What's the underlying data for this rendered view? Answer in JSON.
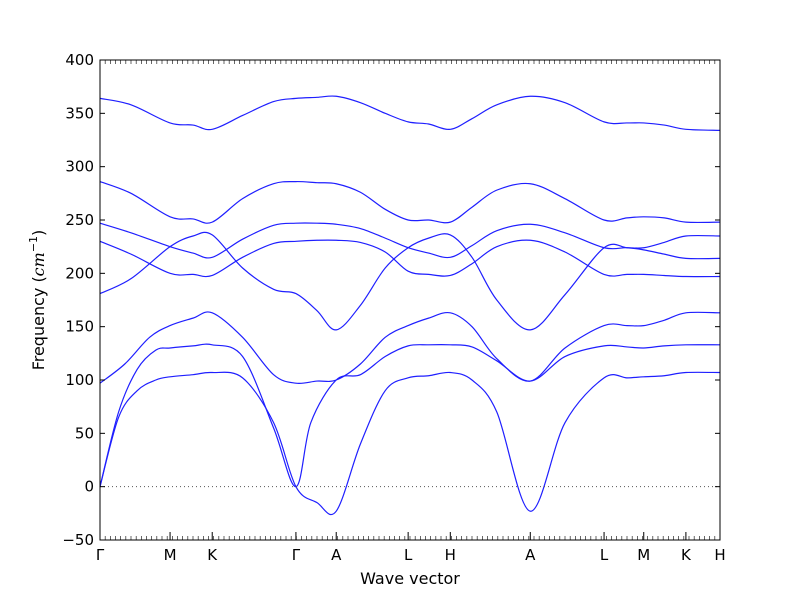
{
  "chart_data": {
    "type": "line",
    "title": "",
    "xlabel": "Wave vector",
    "ylabel_main": "Frequency (",
    "ylabel_unit": "cm",
    "ylabel_exp": "−1",
    "ylabel_close": ")",
    "ylim": [
      -50,
      400
    ],
    "yticks": [
      -50,
      0,
      50,
      100,
      150,
      200,
      250,
      300,
      350,
      400
    ],
    "ytick_labels": [
      "−50",
      "0",
      "50",
      "100",
      "150",
      "200",
      "250",
      "300",
      "350",
      "400"
    ],
    "xlim": [
      0,
      10
    ],
    "high_symmetry_points": [
      {
        "label": "Γ",
        "x": 0
      },
      {
        "label": "M",
        "x": 1.13
      },
      {
        "label": "K",
        "x": 1.81
      },
      {
        "label": "Γ",
        "x": 3.16
      },
      {
        "label": "A",
        "x": 3.81
      },
      {
        "label": "L",
        "x": 4.97
      },
      {
        "label": "H",
        "x": 5.65
      },
      {
        "label": "A",
        "x": 6.94
      },
      {
        "label": "L",
        "x": 8.13
      },
      {
        "label": "M",
        "x": 8.77
      },
      {
        "label": "K",
        "x": 9.45
      },
      {
        "label": "H",
        "x": 10.0
      }
    ],
    "zero_line": true,
    "line_color": "#1f1fff",
    "series": [
      {
        "x": [
          0,
          0.3,
          0.6,
          0.9,
          1.13,
          1.5,
          1.81,
          2.3,
          2.8,
          3.16,
          3.5,
          3.81,
          4.2,
          4.6,
          4.97,
          5.3,
          5.65,
          6.0,
          6.4,
          6.94,
          7.5,
          8.13,
          8.5,
          8.77,
          9.1,
          9.45,
          10.0
        ],
        "y": [
          0,
          65,
          90,
          100,
          103,
          105,
          107,
          102,
          60,
          0,
          -15,
          -23,
          40,
          90,
          102,
          104,
          107,
          100,
          70,
          -23,
          60,
          102,
          102,
          103,
          104,
          107,
          107
        ]
      },
      {
        "x": [
          0,
          0.3,
          0.6,
          0.9,
          1.13,
          1.5,
          1.81,
          2.3,
          2.8,
          3.16,
          3.4,
          3.81,
          4.2,
          4.6,
          4.97,
          5.3,
          5.65,
          6.0,
          6.4,
          6.94,
          7.5,
          8.13,
          8.5,
          8.77,
          9.1,
          9.45,
          10.0
        ],
        "y": [
          0,
          70,
          110,
          128,
          130,
          132,
          133,
          122,
          55,
          0,
          60,
          100,
          105,
          122,
          132,
          133,
          133,
          131,
          118,
          99,
          122,
          132,
          131,
          130,
          132,
          133,
          133
        ]
      },
      {
        "x": [
          0,
          0.4,
          0.8,
          1.13,
          1.5,
          1.81,
          2.3,
          2.8,
          3.16,
          3.5,
          3.81,
          4.2,
          4.6,
          4.97,
          5.3,
          5.65,
          6.0,
          6.4,
          6.94,
          7.5,
          8.13,
          8.5,
          8.77,
          9.1,
          9.45,
          10.0
        ],
        "y": [
          97,
          115,
          140,
          151,
          158,
          163,
          140,
          105,
          97,
          99,
          100,
          115,
          140,
          151,
          158,
          163,
          150,
          120,
          99,
          130,
          151,
          151,
          151,
          156,
          163,
          163
        ]
      },
      {
        "x": [
          0,
          0.5,
          1.13,
          1.5,
          1.81,
          2.3,
          2.8,
          3.16,
          3.5,
          3.81,
          4.2,
          4.6,
          4.97,
          5.3,
          5.65,
          6.0,
          6.4,
          6.94,
          7.5,
          8.13,
          8.5,
          8.77,
          9.1,
          9.45,
          10.0
        ],
        "y": [
          181,
          195,
          225,
          235,
          236,
          205,
          185,
          181,
          165,
          147,
          170,
          205,
          224,
          233,
          236,
          215,
          175,
          147,
          180,
          224,
          224,
          224,
          229,
          235,
          235
        ]
      },
      {
        "x": [
          0,
          0.5,
          1.13,
          1.5,
          1.81,
          2.3,
          2.8,
          3.16,
          3.5,
          3.81,
          4.2,
          4.6,
          4.97,
          5.3,
          5.65,
          6.0,
          6.4,
          6.94,
          7.5,
          8.13,
          8.5,
          8.77,
          9.1,
          9.45,
          10.0
        ],
        "y": [
          230,
          218,
          200,
          199,
          198,
          215,
          228,
          230,
          231,
          231,
          229,
          220,
          202,
          199,
          198,
          209,
          225,
          231,
          220,
          199,
          199,
          199,
          198,
          197,
          197
        ]
      },
      {
        "x": [
          0,
          0.5,
          1.13,
          1.5,
          1.81,
          2.3,
          2.8,
          3.16,
          3.5,
          3.81,
          4.2,
          4.6,
          4.97,
          5.3,
          5.65,
          6.0,
          6.4,
          6.94,
          7.5,
          8.13,
          8.5,
          8.77,
          9.1,
          9.45,
          10.0
        ],
        "y": [
          247,
          238,
          225,
          219,
          215,
          232,
          245,
          247,
          247,
          246,
          242,
          233,
          224,
          219,
          215,
          226,
          240,
          246,
          238,
          224,
          224,
          222,
          218,
          214,
          214
        ]
      },
      {
        "x": [
          0,
          0.5,
          1.13,
          1.5,
          1.81,
          2.3,
          2.8,
          3.16,
          3.5,
          3.81,
          4.2,
          4.6,
          4.97,
          5.3,
          5.65,
          6.0,
          6.4,
          6.94,
          7.5,
          8.13,
          8.5,
          8.77,
          9.1,
          9.45,
          10.0
        ],
        "y": [
          286,
          275,
          253,
          251,
          248,
          270,
          284,
          286,
          285,
          284,
          276,
          260,
          250,
          250,
          248,
          262,
          278,
          284,
          270,
          250,
          252,
          253,
          252,
          248,
          248
        ]
      },
      {
        "x": [
          0,
          0.5,
          1.13,
          1.5,
          1.81,
          2.3,
          2.8,
          3.16,
          3.5,
          3.81,
          4.2,
          4.6,
          4.97,
          5.3,
          5.65,
          6.0,
          6.4,
          6.94,
          7.5,
          8.13,
          8.5,
          8.77,
          9.1,
          9.45,
          10.0
        ],
        "y": [
          364,
          358,
          341,
          339,
          335,
          348,
          361,
          364,
          365,
          366,
          360,
          350,
          342,
          340,
          335,
          345,
          358,
          366,
          360,
          342,
          341,
          341,
          339,
          335,
          334
        ]
      }
    ]
  }
}
